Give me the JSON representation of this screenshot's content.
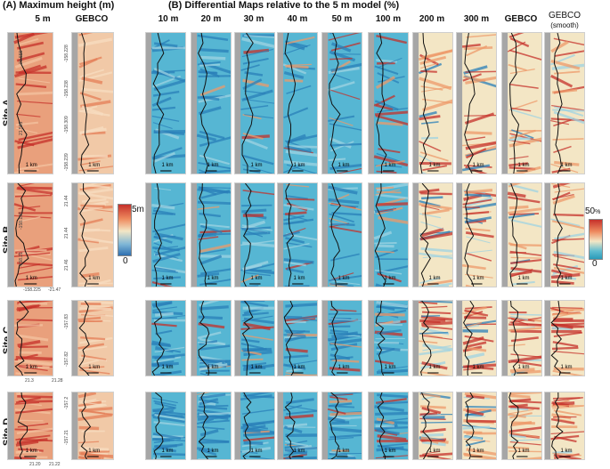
{
  "sections": {
    "a_title": "(A) Maximum height (m)",
    "b_title": "(B) Differential Maps relative to the 5 m model (%)"
  },
  "columns_a": [
    "5 m",
    "GEBCO"
  ],
  "columns_b": [
    "10 m",
    "20 m",
    "30 m",
    "40 m",
    "50 m",
    "100 m",
    "200 m",
    "300 m",
    "GEBCO",
    "GEBCO"
  ],
  "gebco_smooth_sub": "(smooth)",
  "sites": [
    "Site A",
    "Site B",
    "Site C",
    "Site D"
  ],
  "scale_label": "1 km",
  "colorbar_a": {
    "max": "5m",
    "min": "0"
  },
  "colorbar_b": {
    "max": "50",
    "unit": "%",
    "min": "0"
  },
  "ticks": {
    "a_lat": [
      "21.555",
      "21.565"
    ],
    "a_lon": [
      "-158.228",
      "-158.238",
      "-158.309",
      "-158.239"
    ],
    "b_lon": [
      "-158.198",
      "-158.21"
    ],
    "b_lat": [
      "21.44",
      "21.44",
      "21.46"
    ],
    "b_bottom": [
      "-158.225",
      "-21.47"
    ],
    "c_lat": [
      "-157.83",
      "-157.82"
    ],
    "c_bottom": [
      "21.3",
      "21.28"
    ],
    "d_lat": [
      "-157.2",
      "-157.21"
    ],
    "d_bottom": [
      "21.20",
      "21.22"
    ]
  },
  "palette": {
    "blue": "#2a7fb8",
    "cyan": "#56b6d3",
    "cream": "#f3e6c5",
    "red": "#c5302a",
    "gray": "#a6a6a6",
    "coast": "#111111"
  }
}
